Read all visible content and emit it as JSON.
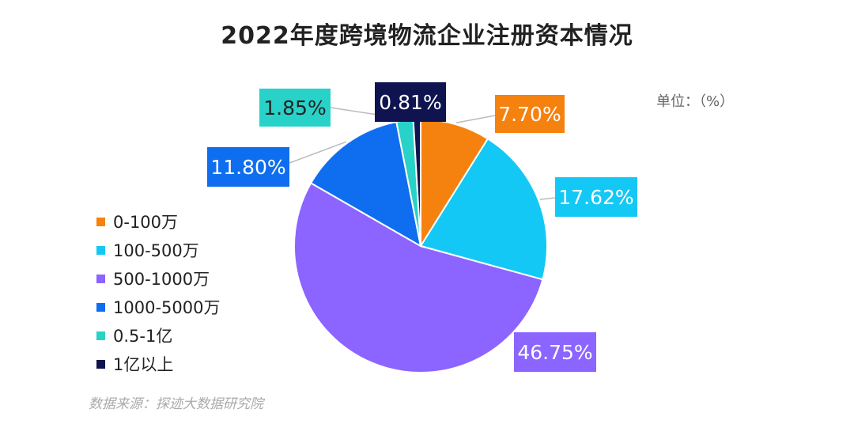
{
  "chart_data": {
    "type": "pie",
    "title": "2022年度跨境物流企业注册资本情况",
    "unit": "单位：（%）",
    "source": "数据来源：探迹大数据研究院",
    "legend_position": "left",
    "slices": [
      {
        "label": "0-100万",
        "value": 7.7,
        "value_label": "7.70%",
        "color": "#F5820F"
      },
      {
        "label": "100-500万",
        "value": 17.62,
        "value_label": "17.62%",
        "color": "#14C8F5"
      },
      {
        "label": "500-1000万",
        "value": 46.75,
        "value_label": "46.75%",
        "color": "#8C64FF"
      },
      {
        "label": "1000-5000万",
        "value": 11.8,
        "value_label": "11.80%",
        "color": "#0F6EF0"
      },
      {
        "label": "0.5-1亿",
        "value": 1.85,
        "value_label": "1.85%",
        "color": "#28D2C8"
      },
      {
        "label": "1亿以上",
        "value": 0.81,
        "value_label": "0.81%",
        "color": "#0F1450"
      }
    ]
  }
}
